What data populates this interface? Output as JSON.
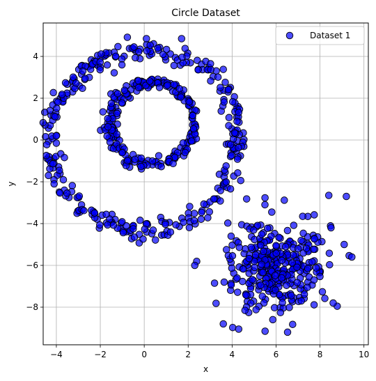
{
  "chart_data": {
    "type": "scatter",
    "title": "Circle Dataset",
    "xlabel": "x",
    "ylabel": "y",
    "xlim": [
      -4.6,
      10.2
    ],
    "ylim": [
      -9.8,
      5.6
    ],
    "xticks": [
      -4,
      -2,
      0,
      2,
      4,
      6,
      8,
      10
    ],
    "yticks": [
      -8,
      -6,
      -4,
      -2,
      0,
      2,
      4
    ],
    "xtick_labels": [
      "−4",
      "−2",
      "0",
      "2",
      "4",
      "6",
      "8",
      "10"
    ],
    "ytick_labels": [
      "−8",
      "−6",
      "−4",
      "−2",
      "0",
      "2",
      "4"
    ],
    "grid": true,
    "legend_position": "top-right",
    "marker_color": "#0000ff",
    "marker_edge": "#000000",
    "series": [
      {
        "name": "Dataset 1",
        "clusters": [
          {
            "shape": "ring",
            "center": [
              0.0,
              0.0
            ],
            "radius": 4.3,
            "spread": 0.25,
            "count": 330
          },
          {
            "shape": "ring",
            "center": [
              0.35,
              0.8
            ],
            "radius": 1.95,
            "spread": 0.15,
            "count": 220
          },
          {
            "shape": "blob",
            "center": [
              6.0,
              -6.0
            ],
            "std": 1.1,
            "count": 330
          }
        ],
        "notable_points": [
          [
            -4.0,
            0.2
          ],
          [
            -4.0,
            -0.15
          ],
          [
            0.1,
            4.85
          ],
          [
            1.7,
            4.85
          ],
          [
            2.3,
            -6.0
          ],
          [
            3.2,
            -6.85
          ],
          [
            3.6,
            -8.8
          ],
          [
            4.3,
            -9.05
          ],
          [
            5.5,
            -9.15
          ],
          [
            8.4,
            -2.65
          ],
          [
            9.2,
            -2.7
          ],
          [
            9.45,
            -5.6
          ],
          [
            8.6,
            -7.8
          ],
          [
            9.1,
            -5.0
          ],
          [
            8.5,
            -4.2
          ]
        ]
      }
    ]
  }
}
